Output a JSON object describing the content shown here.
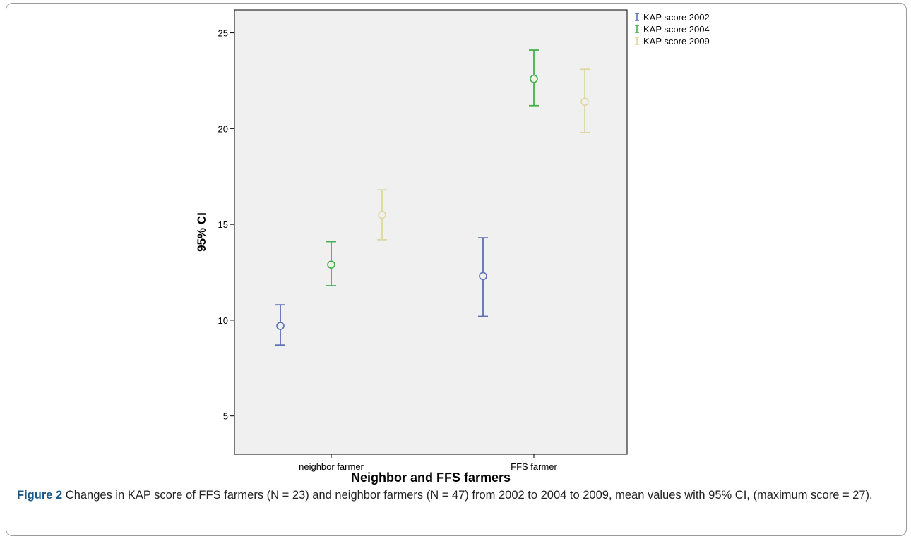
{
  "chart_data": {
    "type": "errorbar",
    "ylabel": "95% CI",
    "xlabel": "Neighbor and FFS farmers",
    "categories": [
      "neighbor farmer",
      "FFS farmer"
    ],
    "ylim": [
      3,
      26.2
    ],
    "yticks": [
      5,
      10,
      15,
      20,
      25
    ],
    "legend_position": "top-right",
    "grid": false,
    "series": [
      {
        "name": "KAP score 2002",
        "color": "#5b6fb5",
        "points": [
          {
            "category": "neighbor farmer",
            "mean": 9.7,
            "lower": 8.7,
            "upper": 10.8
          },
          {
            "category": "FFS farmer",
            "mean": 12.3,
            "lower": 10.2,
            "upper": 14.3
          }
        ]
      },
      {
        "name": "KAP score 2004",
        "color": "#47b04b",
        "points": [
          {
            "category": "neighbor farmer",
            "mean": 12.9,
            "lower": 11.8,
            "upper": 14.1
          },
          {
            "category": "FFS farmer",
            "mean": 22.6,
            "lower": 21.2,
            "upper": 24.1
          }
        ]
      },
      {
        "name": "KAP score 2009",
        "color": "#ddd8a0",
        "points": [
          {
            "category": "neighbor farmer",
            "mean": 15.5,
            "lower": 14.2,
            "upper": 16.8
          },
          {
            "category": "FFS farmer",
            "mean": 21.4,
            "lower": 19.8,
            "upper": 23.1
          }
        ]
      }
    ]
  },
  "caption": {
    "label": "Figure 2",
    "text": " Changes in KAP score of FFS farmers (N = 23) and neighbor farmers (N = 47) from 2002 to 2004 to 2009, mean values with 95% CI, (maximum score = 27)."
  }
}
